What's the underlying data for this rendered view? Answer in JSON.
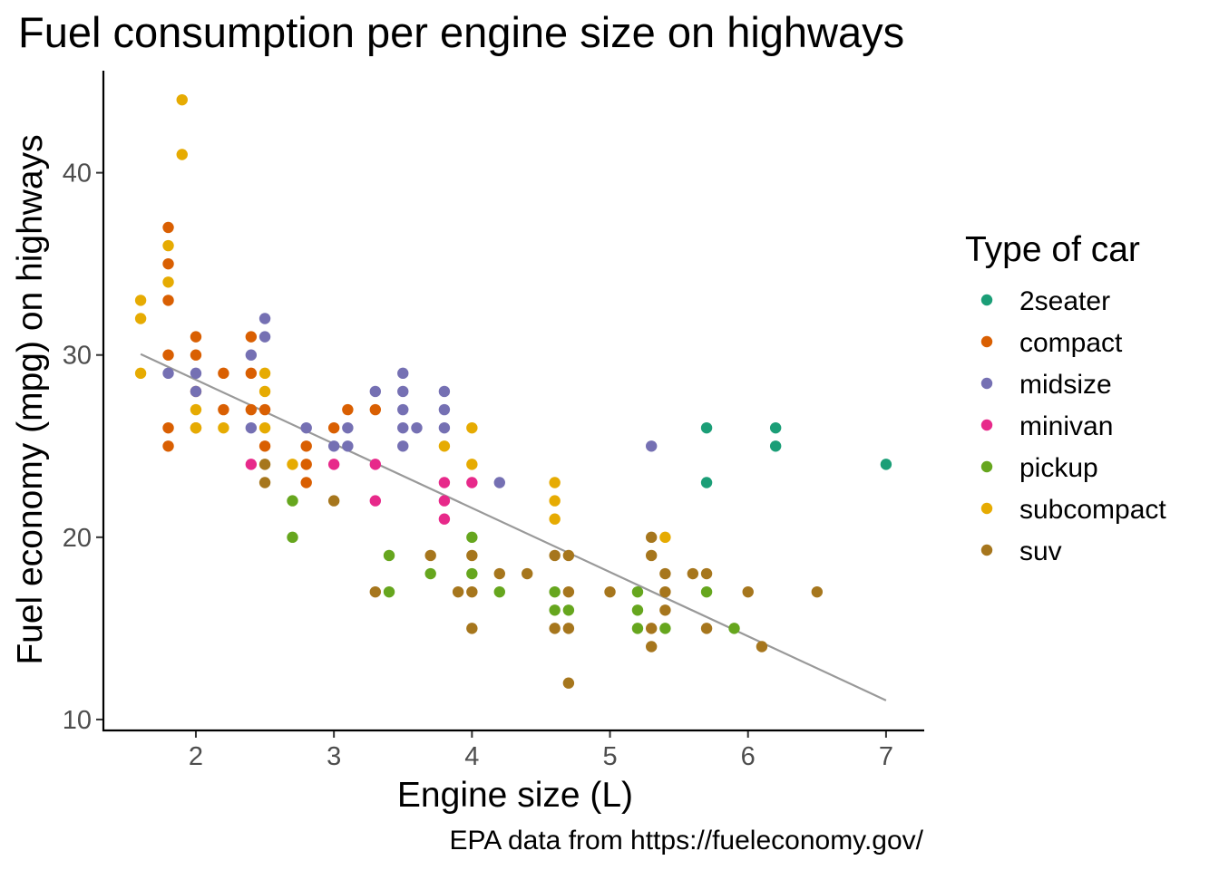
{
  "chart_data": {
    "type": "scatter",
    "title": "Fuel consumption per engine size on highways",
    "xlabel": "Engine size (L)",
    "ylabel": "Fuel economy (mpg) on highways",
    "caption": "EPA data from https://fueleconomy.gov/",
    "xlim": [
      1.33,
      7.27
    ],
    "ylim": [
      9.4,
      45.6
    ],
    "xticks": [
      2,
      3,
      4,
      5,
      6,
      7
    ],
    "yticks": [
      10,
      20,
      30,
      40
    ],
    "grid": false,
    "legend": {
      "title": "Type of car",
      "position": "right",
      "entries": [
        "2seater",
        "compact",
        "midsize",
        "minivan",
        "pickup",
        "subcompact",
        "suv"
      ]
    },
    "colors": {
      "2seater": "#1b9e77",
      "compact": "#d95f02",
      "midsize": "#7570b3",
      "minivan": "#e7298a",
      "pickup": "#66a61e",
      "subcompact": "#e6ab02",
      "suv": "#a6761d"
    },
    "trend_line": {
      "type": "linear",
      "color": "#999999",
      "x": [
        1.6,
        7.0
      ],
      "y": [
        30.05,
        11.05
      ]
    },
    "series": [
      {
        "name": "2seater",
        "points": [
          [
            5.7,
            26
          ],
          [
            5.7,
            23
          ],
          [
            6.2,
            26
          ],
          [
            6.2,
            25
          ],
          [
            7.0,
            24
          ]
        ]
      },
      {
        "name": "compact",
        "points": [
          [
            1.8,
            37
          ],
          [
            1.8,
            35
          ],
          [
            1.8,
            33
          ],
          [
            1.8,
            30
          ],
          [
            1.8,
            26
          ],
          [
            1.8,
            25
          ],
          [
            2.0,
            31
          ],
          [
            2.0,
            30
          ],
          [
            2.0,
            28
          ],
          [
            2.0,
            26
          ],
          [
            2.2,
            29
          ],
          [
            2.2,
            27
          ],
          [
            2.4,
            31
          ],
          [
            2.4,
            29
          ],
          [
            2.4,
            27
          ],
          [
            2.5,
            27
          ],
          [
            2.5,
            25
          ],
          [
            2.8,
            25
          ],
          [
            2.8,
            24
          ],
          [
            2.8,
            23
          ],
          [
            3.0,
            26
          ],
          [
            3.1,
            27
          ],
          [
            3.3,
            27
          ]
        ]
      },
      {
        "name": "midsize",
        "points": [
          [
            1.8,
            29
          ],
          [
            2.0,
            29
          ],
          [
            2.0,
            28
          ],
          [
            2.4,
            30
          ],
          [
            2.4,
            26
          ],
          [
            2.5,
            32
          ],
          [
            2.5,
            31
          ],
          [
            2.8,
            26
          ],
          [
            3.1,
            26
          ],
          [
            3.0,
            25
          ],
          [
            3.1,
            25
          ],
          [
            3.3,
            28
          ],
          [
            3.5,
            29
          ],
          [
            3.5,
            28
          ],
          [
            3.5,
            27
          ],
          [
            3.5,
            26
          ],
          [
            3.5,
            25
          ],
          [
            3.6,
            26
          ],
          [
            3.8,
            28
          ],
          [
            3.8,
            27
          ],
          [
            3.8,
            26
          ],
          [
            4.2,
            23
          ],
          [
            5.3,
            25
          ]
        ]
      },
      {
        "name": "minivan",
        "points": [
          [
            2.4,
            24
          ],
          [
            3.0,
            24
          ],
          [
            3.3,
            24
          ],
          [
            3.3,
            22
          ],
          [
            3.8,
            23
          ],
          [
            3.8,
            22
          ],
          [
            3.8,
            21
          ],
          [
            4.0,
            23
          ]
        ]
      },
      {
        "name": "pickup",
        "points": [
          [
            2.7,
            22
          ],
          [
            2.7,
            20
          ],
          [
            3.4,
            19
          ],
          [
            3.4,
            17
          ],
          [
            3.7,
            18
          ],
          [
            4.0,
            20
          ],
          [
            4.0,
            18
          ],
          [
            4.2,
            17
          ],
          [
            4.6,
            17
          ],
          [
            4.6,
            16
          ],
          [
            4.7,
            16
          ],
          [
            5.2,
            17
          ],
          [
            5.2,
            16
          ],
          [
            5.2,
            15
          ],
          [
            5.4,
            15
          ],
          [
            5.7,
            17
          ],
          [
            5.9,
            15
          ]
        ]
      },
      {
        "name": "subcompact",
        "points": [
          [
            1.6,
            33
          ],
          [
            1.6,
            32
          ],
          [
            1.6,
            29
          ],
          [
            1.8,
            36
          ],
          [
            1.8,
            34
          ],
          [
            1.9,
            44
          ],
          [
            1.9,
            41
          ],
          [
            2.0,
            27
          ],
          [
            2.0,
            26
          ],
          [
            2.2,
            26
          ],
          [
            2.5,
            29
          ],
          [
            2.5,
            28
          ],
          [
            2.5,
            26
          ],
          [
            2.7,
            24
          ],
          [
            3.8,
            25
          ],
          [
            4.0,
            26
          ],
          [
            4.0,
            24
          ],
          [
            4.6,
            23
          ],
          [
            4.6,
            22
          ],
          [
            4.6,
            21
          ],
          [
            5.4,
            20
          ]
        ]
      },
      {
        "name": "suv",
        "points": [
          [
            2.5,
            24
          ],
          [
            2.5,
            23
          ],
          [
            3.0,
            22
          ],
          [
            3.3,
            17
          ],
          [
            3.7,
            19
          ],
          [
            3.9,
            17
          ],
          [
            4.0,
            19
          ],
          [
            4.0,
            17
          ],
          [
            4.0,
            15
          ],
          [
            4.2,
            18
          ],
          [
            4.4,
            18
          ],
          [
            4.6,
            19
          ],
          [
            4.6,
            15
          ],
          [
            4.7,
            19
          ],
          [
            4.7,
            17
          ],
          [
            4.7,
            15
          ],
          [
            4.7,
            12
          ],
          [
            5.0,
            17
          ],
          [
            5.3,
            20
          ],
          [
            5.3,
            19
          ],
          [
            5.3,
            15
          ],
          [
            5.3,
            14
          ],
          [
            5.4,
            18
          ],
          [
            5.4,
            17
          ],
          [
            5.4,
            16
          ],
          [
            5.6,
            18
          ],
          [
            5.7,
            18
          ],
          [
            5.7,
            15
          ],
          [
            6.0,
            17
          ],
          [
            6.1,
            14
          ],
          [
            6.5,
            17
          ]
        ]
      }
    ]
  }
}
